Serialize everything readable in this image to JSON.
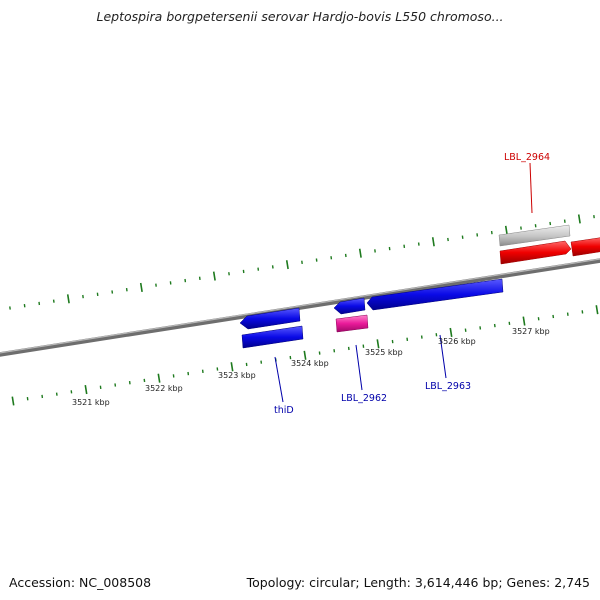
{
  "title": "Leptospira borgpetersenii serovar Hardjo-bovis L550 chromoso...",
  "footer": {
    "accession": "Accession: NC_008508",
    "summary": "Topology: circular; Length: 3,614,446 bp; Genes: 2,745"
  },
  "ruler_labels": [
    "3521 kbp",
    "3522 kbp",
    "3523 kbp",
    "3524 kbp",
    "3525 kbp",
    "3526 kbp",
    "3527 kbp"
  ],
  "gene_labels": [
    {
      "text": "LBL_2964",
      "color": "#cc0000"
    },
    {
      "text": "thiD",
      "color": "#0000aa"
    },
    {
      "text": "LBL_2962",
      "color": "#0000aa"
    },
    {
      "text": "LBL_2963",
      "color": "#0000aa"
    }
  ],
  "colors": {
    "backbone": "#7a7a7a",
    "tick": "#1e7a1e",
    "gene_blue": "#0a0ae6",
    "gene_red": "#f00000",
    "gene_pink": "#ea1a9a",
    "gene_gray": "#bfbfbf"
  }
}
